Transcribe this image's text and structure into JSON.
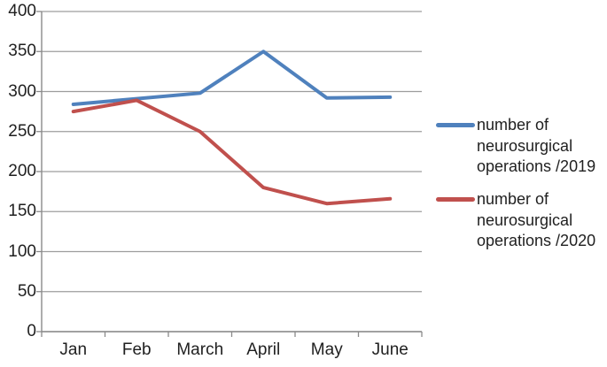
{
  "chart_data": {
    "type": "line",
    "categories": [
      "Jan",
      "Feb",
      "March",
      "April",
      "May",
      "June"
    ],
    "series": [
      {
        "name": "number of neurosurgical operations /2019",
        "color": "#4F81BD",
        "values": [
          284,
          291,
          298,
          350,
          292,
          293
        ]
      },
      {
        "name": "number of neurosurgical operations /2020",
        "color": "#C0504D",
        "values": [
          275,
          289,
          250,
          180,
          160,
          166
        ]
      }
    ],
    "ylim": [
      0,
      400
    ],
    "ytick_step": 50,
    "yticks": [
      "400",
      "350",
      "300",
      "250",
      "200",
      "150",
      "100",
      "50",
      "0"
    ],
    "grid": "horizontal-major",
    "legend_position": "right"
  },
  "legend": {
    "items": [
      {
        "label": "number of neurosurgical operations /2019",
        "color": "#4F81BD"
      },
      {
        "label": "number of neurosurgical operations /2020",
        "color": "#C0504D"
      }
    ]
  },
  "colors": {
    "grid": "#9d9d9d",
    "axis": "#8a8a8a",
    "text": "#1f1f1f",
    "background": "#ffffff"
  }
}
